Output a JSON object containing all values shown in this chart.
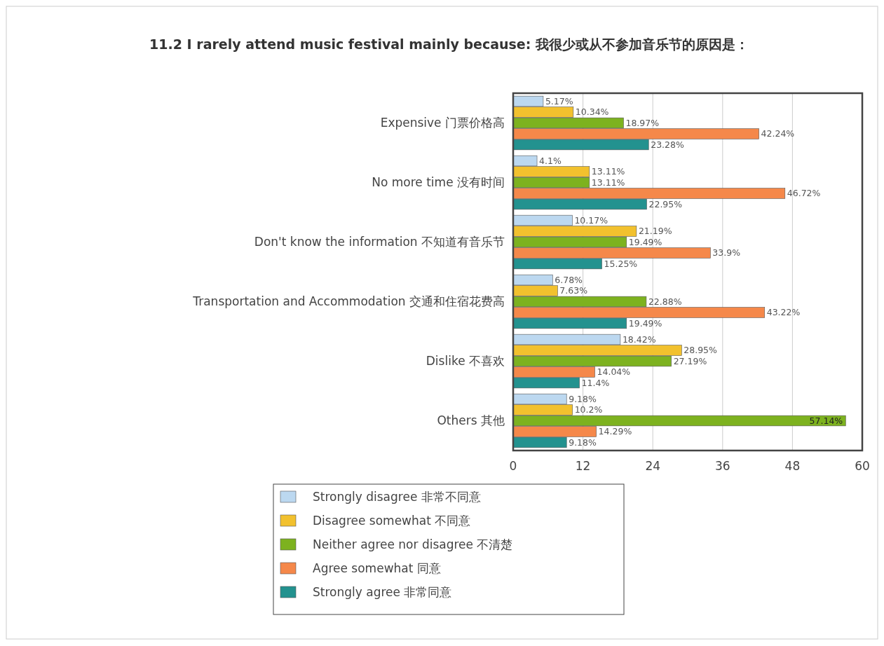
{
  "chart_data": {
    "type": "bar",
    "orientation": "horizontal",
    "title": "11.2 I rarely attend music festival mainly because: 我很少或从不参加音乐节的原因是：",
    "categories": [
      "Expensive 门票价格高",
      "No more time 没有时间",
      "Don't know the information 不知道有音乐节",
      "Transportation and Accommodation 交通和住宿花费高",
      "Dislike 不喜欢",
      "Others 其他"
    ],
    "series": [
      {
        "name": "Strongly disagree 非常不同意",
        "color": "#bcd8f0",
        "values": [
          5.17,
          4.1,
          10.17,
          6.78,
          18.42,
          9.18
        ],
        "value_labels": [
          "5.17%",
          "4.1%",
          "10.17%",
          "6.78%",
          "18.42%",
          "9.18%"
        ]
      },
      {
        "name": "Disagree somewhat 不同意",
        "color": "#f2c12e",
        "values": [
          10.34,
          13.11,
          21.19,
          7.63,
          28.95,
          10.2
        ],
        "value_labels": [
          "10.34%",
          "13.11%",
          "21.19%",
          "7.63%",
          "28.95%",
          "10.2%"
        ]
      },
      {
        "name": "Neither agree nor disagree 不清楚",
        "color": "#7db21f",
        "values": [
          18.97,
          13.11,
          19.49,
          22.88,
          27.19,
          57.14
        ],
        "value_labels": [
          "18.97%",
          "13.11%",
          "19.49%",
          "22.88%",
          "27.19%",
          "57.14%"
        ]
      },
      {
        "name": "Agree somewhat 同意",
        "color": "#f5884a",
        "values": [
          42.24,
          46.72,
          33.9,
          43.22,
          14.04,
          14.29
        ],
        "value_labels": [
          "42.24%",
          "46.72%",
          "33.9%",
          "43.22%",
          "14.04%",
          "14.29%"
        ]
      },
      {
        "name": "Strongly agree 非常同意",
        "color": "#23928f",
        "values": [
          23.28,
          22.95,
          15.25,
          19.49,
          11.4,
          9.18
        ],
        "value_labels": [
          "23.28%",
          "22.95%",
          "15.25%",
          "19.49%",
          "11.4%",
          "9.18%"
        ]
      }
    ],
    "xlim": [
      0,
      60
    ],
    "xticks": [
      0,
      12,
      24,
      36,
      48,
      60
    ],
    "grid": "x",
    "legend": "bottom"
  }
}
